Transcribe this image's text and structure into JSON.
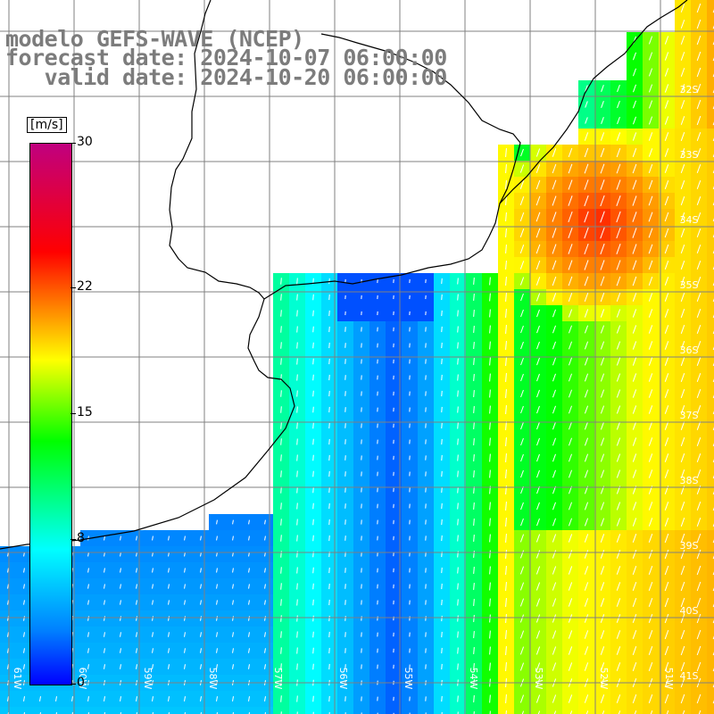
{
  "title": {
    "line1": "modelo GEFS-WAVE (NCEP)",
    "line2": "forecast date: 2024-10-07 06:00:00",
    "line3": "   valid date: 2024-10-20 06:00:00"
  },
  "colorbar": {
    "units": "[m/s]",
    "ticks": [
      {
        "value": 30,
        "label": "30"
      },
      {
        "value": 22,
        "label": "22"
      },
      {
        "value": 15,
        "label": "15"
      },
      {
        "value": 8,
        "label": "8"
      },
      {
        "value": 0,
        "label": "0"
      }
    ],
    "range": [
      0,
      30
    ]
  },
  "map": {
    "lat_labels": [
      "32S",
      "33S",
      "34S",
      "35S",
      "36S",
      "37S",
      "38S",
      "39S",
      "40S",
      "41S"
    ],
    "lon_labels": [
      "61W",
      "60W",
      "59W",
      "58W",
      "57W",
      "56W",
      "55W",
      "54W",
      "53W",
      "52W",
      "51W"
    ],
    "land_color": "#ffffff",
    "grid_color": "#808080"
  }
}
